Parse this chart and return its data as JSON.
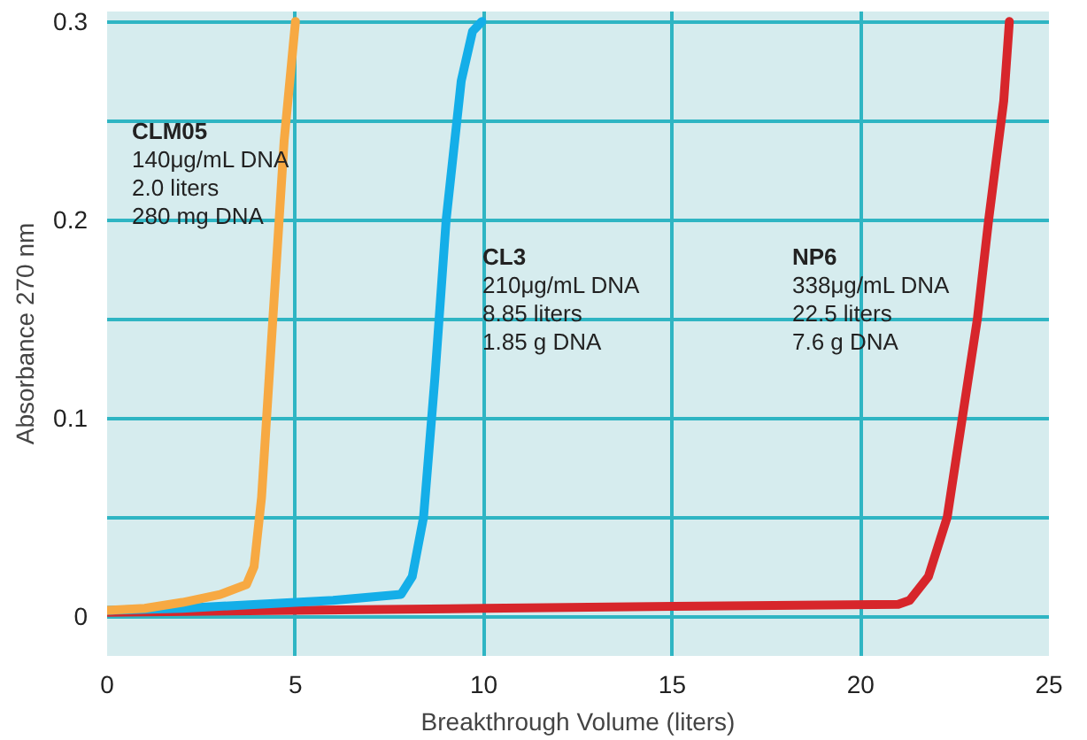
{
  "chart_data": {
    "type": "line",
    "xlabel": "Breakthrough Volume (liters)",
    "ylabel": "Absorbance 270 nm",
    "xlim": [
      0,
      25
    ],
    "ylim": [
      -0.02,
      0.305
    ],
    "xticks": [
      0,
      5,
      10,
      15,
      20,
      25
    ],
    "yticks": [
      0,
      {
        "value": 0.05,
        "label": null
      },
      0.1,
      {
        "value": 0.15,
        "label": null
      },
      0.2,
      {
        "value": 0.25,
        "label": null
      },
      0.3
    ],
    "grid": true,
    "marker": "none",
    "line_style": "solid",
    "series": [
      {
        "color": "#f7a942",
        "x": [
          0,
          1,
          2,
          3,
          3.7,
          3.9,
          4.1,
          4.3,
          4.5,
          4.7,
          4.9,
          5.0
        ],
        "values": [
          0.003,
          0.004,
          0.007,
          0.011,
          0.016,
          0.025,
          0.06,
          0.12,
          0.18,
          0.24,
          0.28,
          0.3
        ]
      },
      {
        "color": "#14aee8",
        "x": [
          0,
          2,
          4,
          6,
          7.8,
          8.1,
          8.4,
          8.7,
          9.0,
          9.4,
          9.7,
          9.95
        ],
        "values": [
          0.003,
          0.004,
          0.006,
          0.008,
          0.011,
          0.02,
          0.05,
          0.12,
          0.2,
          0.27,
          0.295,
          0.3
        ]
      },
      {
        "color": "#d7262b",
        "x": [
          0,
          5,
          10,
          15,
          21,
          21.3,
          21.8,
          22.3,
          22.7,
          23.1,
          23.4,
          23.8,
          23.95
        ],
        "values": [
          0.002,
          0.003,
          0.004,
          0.005,
          0.006,
          0.008,
          0.02,
          0.05,
          0.1,
          0.15,
          0.2,
          0.26,
          0.3
        ]
      }
    ],
    "annotations": [
      "CLM05\n140μg/mL DNA\n2.0 liters\n280 mg DNA",
      "CL3\n210μg/mL DNA\n8.85 liters\n1.85 g DNA",
      "NP6\n338μg/mL DNA\n22.5 liters\n7.6 g DNA"
    ]
  }
}
